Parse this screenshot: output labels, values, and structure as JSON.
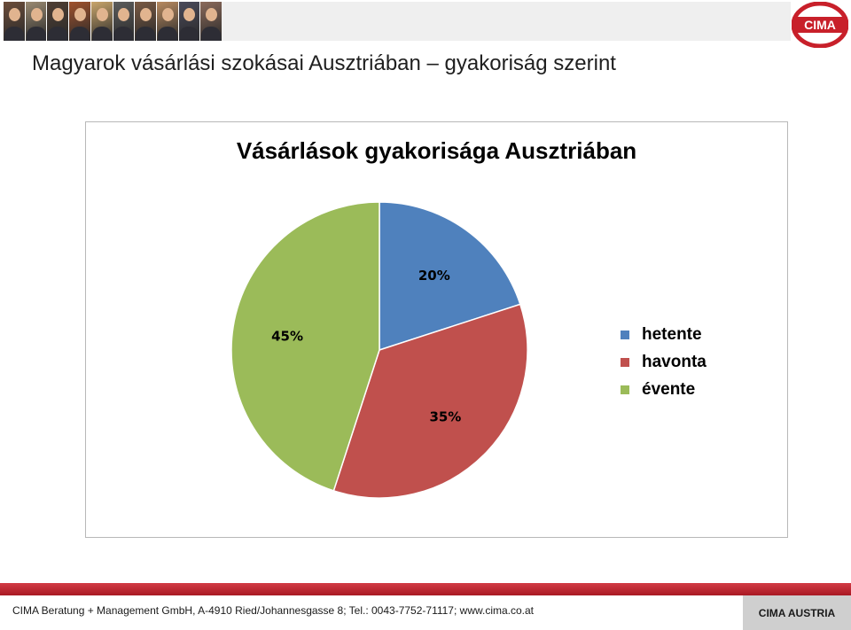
{
  "header": {
    "photo_tints": [
      "#6b4d3a",
      "#9a8a72",
      "#4f3f34",
      "#a0522d",
      "#c9a56b",
      "#5c5c5c",
      "#7a5a44",
      "#b88a60",
      "#4a4a5a",
      "#8b6a5a"
    ],
    "logo_text": "CIMA",
    "logo_color": "#c8202a"
  },
  "page": {
    "title": "Magyarok vásárlási szokásai Ausztriában – gyakoriság szerint"
  },
  "chart_data": {
    "type": "pie",
    "title": "Vásárlások gyakorisága Ausztriában",
    "categories": [
      "hetente",
      "havonta",
      "évente"
    ],
    "values": [
      20,
      35,
      45
    ],
    "labels": [
      "20%",
      "35%",
      "45%"
    ],
    "colors": [
      "#4f81bd",
      "#c0504d",
      "#9bbb59"
    ],
    "legend_position": "right"
  },
  "footer": {
    "text": "CIMA Beratung + Management GmbH, A-4910 Ried/Johannesgasse 8; Tel.: 0043-7752-71117; www.cima.co.at",
    "brand": "CIMA AUSTRIA"
  }
}
